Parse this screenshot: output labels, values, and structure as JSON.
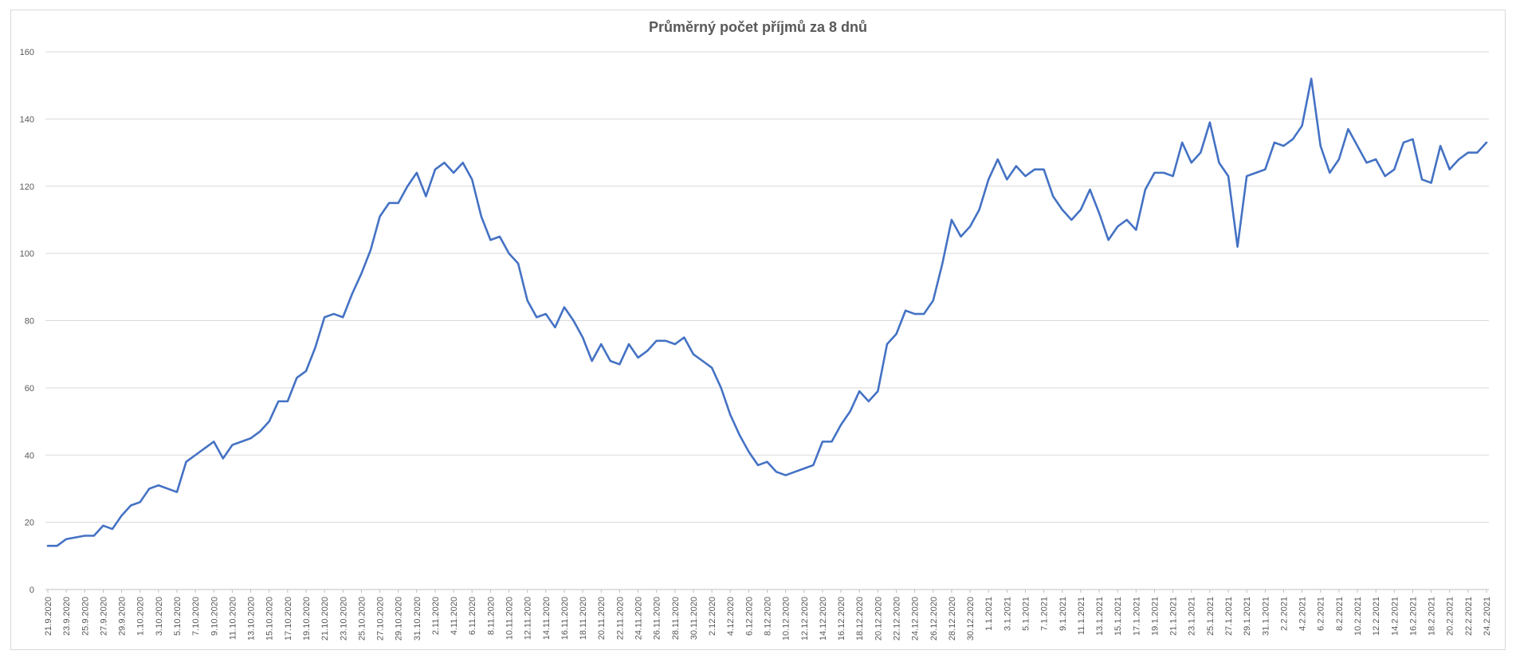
{
  "chart_data": {
    "type": "line",
    "title": "Průměrný počet příjmů za 8 dnů",
    "xlabel": "",
    "ylabel": "",
    "ylim": [
      0,
      160
    ],
    "yticks": [
      0,
      20,
      40,
      60,
      80,
      100,
      120,
      140,
      160
    ],
    "grid": true,
    "legend": "none",
    "line_color": "#4472c4",
    "x_tick_labels": [
      "21.9.2020",
      "23.9.2020",
      "25.9.2020",
      "27.9.2020",
      "29.9.2020",
      "1.10.2020",
      "3.10.2020",
      "5.10.2020",
      "7.10.2020",
      "9.10.2020",
      "11.10.2020",
      "13.10.2020",
      "15.10.2020",
      "17.10.2020",
      "19.10.2020",
      "21.10.2020",
      "23.10.2020",
      "25.10.2020",
      "27.10.2020",
      "29.10.2020",
      "31.10.2020",
      "2.11.2020",
      "4.11.2020",
      "6.11.2020",
      "8.11.2020",
      "10.11.2020",
      "12.11.2020",
      "14.11.2020",
      "16.11.2020",
      "18.11.2020",
      "20.11.2020",
      "22.11.2020",
      "24.11.2020",
      "26.11.2020",
      "28.11.2020",
      "30.11.2020",
      "2.12.2020",
      "4.12.2020",
      "6.12.2020",
      "8.12.2020",
      "10.12.2020",
      "12.12.2020",
      "14.12.2020",
      "16.12.2020",
      "18.12.2020",
      "20.12.2020",
      "22.12.2020",
      "24.12.2020",
      "26.12.2020",
      "28.12.2020",
      "30.12.2020",
      "1.1.2021",
      "3.1.2021",
      "5.1.2021",
      "7.1.2021",
      "9.1.2021",
      "11.1.2021",
      "13.1.2021",
      "15.1.2021",
      "17.1.2021",
      "19.1.2021",
      "21.1.2021",
      "23.1.2021",
      "25.1.2021",
      "27.1.2021",
      "29.1.2021",
      "31.1.2021",
      "2.2.2021",
      "4.2.2021",
      "6.2.2021",
      "8.2.2021",
      "10.2.2021",
      "12.2.2021",
      "14.2.2021",
      "16.2.2021",
      "18.2.2021",
      "20.2.2021",
      "22.2.2021",
      "24.2.2021"
    ],
    "series": [
      {
        "values": [
          13,
          13,
          15,
          15.5,
          16,
          16,
          19,
          18,
          22,
          25,
          26,
          30,
          31,
          30,
          29,
          38,
          40,
          42,
          44,
          39,
          43,
          44,
          45,
          47,
          50,
          56,
          56,
          63,
          65,
          72,
          81,
          82,
          81,
          88,
          94,
          101,
          111,
          115,
          115,
          120,
          124,
          117,
          125,
          127,
          124,
          127,
          122,
          111,
          104,
          105,
          100,
          97,
          86,
          81,
          82,
          78,
          84,
          80,
          75,
          68,
          73,
          68,
          67,
          73,
          69,
          71,
          74,
          74,
          73,
          75,
          70,
          68,
          66,
          60,
          52,
          46,
          41,
          37,
          38,
          35,
          34,
          35,
          36,
          37,
          44,
          44,
          49,
          53,
          59,
          56,
          59,
          73,
          76,
          83,
          82,
          82,
          86,
          97,
          110,
          105,
          108,
          113,
          122,
          128,
          122,
          126,
          123,
          125,
          125,
          117,
          113,
          110,
          113,
          119,
          112,
          104,
          108,
          110,
          107,
          119,
          124,
          124,
          123,
          133,
          127,
          130,
          139,
          127,
          123,
          102,
          123,
          124,
          125,
          133,
          132,
          134,
          138,
          152,
          132,
          124,
          128,
          137,
          132,
          127,
          128,
          123,
          125,
          133,
          134,
          122,
          121,
          132,
          125,
          128,
          130,
          130,
          133
        ]
      }
    ]
  }
}
